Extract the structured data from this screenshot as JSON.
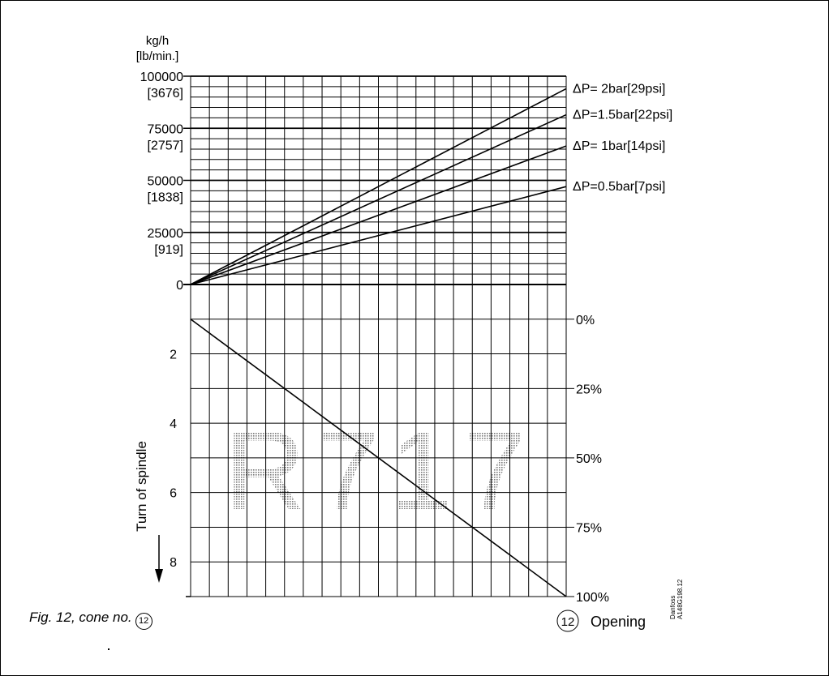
{
  "figure": {
    "caption": "Fig. 12, cone no.",
    "cone_number": "12",
    "opening_label": "Opening",
    "refrigerant_watermark": "R717",
    "maker_code": "Danfoss",
    "drawing_code": "A148G198.12"
  },
  "chart_data": [
    {
      "type": "line",
      "ylabel_lines": [
        "kg/h",
        "[lb/min.]"
      ],
      "ylim": [
        0,
        100000
      ],
      "y_ticks": [
        {
          "value": 100000,
          "label": "100000",
          "sublabel": "[3676]"
        },
        {
          "value": 75000,
          "label": "75000",
          "sublabel": "[2757]"
        },
        {
          "value": 50000,
          "label": "50000",
          "sublabel": "[1838]"
        },
        {
          "value": 25000,
          "label": "25000",
          "sublabel": "[919]"
        },
        {
          "value": 0,
          "label": "0",
          "sublabel": ""
        }
      ],
      "xlim": [
        0,
        100
      ],
      "grid": true,
      "series": [
        {
          "name": "ΔP= 2bar[29psi]",
          "x": [
            0,
            100
          ],
          "values": [
            0,
            94000
          ]
        },
        {
          "name": "ΔP=1.5bar[22psi]",
          "x": [
            0,
            100
          ],
          "values": [
            0,
            81500
          ]
        },
        {
          "name": "ΔP= 1bar[14psi]",
          "x": [
            0,
            100
          ],
          "values": [
            0,
            66500
          ]
        },
        {
          "name": "ΔP=0.5bar[7psi]",
          "x": [
            0,
            100
          ],
          "values": [
            0,
            47000
          ]
        }
      ]
    },
    {
      "type": "line",
      "ylabel": "Turn of spindle",
      "ylim": [
        0,
        9
      ],
      "y_ticks": [
        {
          "value": 2,
          "label": "2"
        },
        {
          "value": 4,
          "label": "4"
        },
        {
          "value": 6,
          "label": "6"
        },
        {
          "value": 8,
          "label": "8"
        }
      ],
      "y2label": "Opening",
      "y2_ticks": [
        {
          "value": 1,
          "label": "0%"
        },
        {
          "value": 3,
          "label": "25%"
        },
        {
          "value": 5,
          "label": "50%"
        },
        {
          "value": 7,
          "label": "75%"
        },
        {
          "value": 9,
          "label": "100%"
        }
      ],
      "xlim": [
        0,
        100
      ],
      "grid": true,
      "series": [
        {
          "x": [
            0,
            100
          ],
          "values": [
            1,
            9
          ]
        }
      ]
    }
  ]
}
